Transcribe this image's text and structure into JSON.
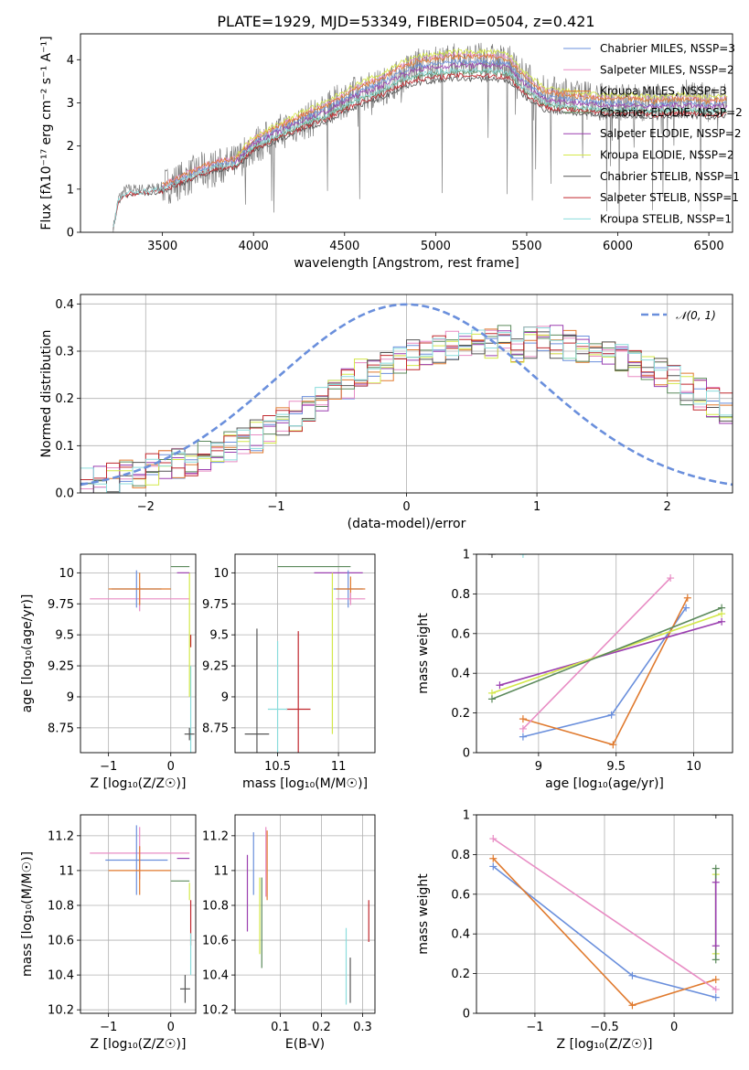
{
  "figure": {
    "title": "PLATE=1929, MJD=53349, FIBERID=0504, z=0.421"
  },
  "chart_data": [
    {
      "type": "line",
      "panel": "spectrum",
      "xlabel": "wavelength [Angstrom, rest frame]",
      "ylabel": "Flux [fλ10⁻¹⁷ erg cm⁻² s⁻¹ A⁻¹]",
      "xlim": [
        3050,
        6630
      ],
      "ylim": [
        0,
        4.6
      ],
      "xticks": [
        3500,
        4000,
        4500,
        5000,
        5500,
        6000,
        6500
      ],
      "yticks": [
        0,
        1,
        2,
        3,
        4
      ],
      "grid": false,
      "legend_position": "top-right",
      "observed": {
        "color": "#7f7f7f",
        "x": [
          3230,
          3260,
          3300,
          3400,
          3500,
          3600,
          3700,
          3800,
          3900,
          4000,
          4100,
          4200,
          4300,
          4400,
          4500,
          4600,
          4700,
          4800,
          4900,
          5000,
          5100,
          5200,
          5300,
          5400,
          5500,
          5600,
          5700,
          5800,
          5900,
          6000,
          6100,
          6200,
          6300,
          6400,
          6500,
          6600
        ],
        "y": [
          0.1,
          0.8,
          1.0,
          1.0,
          1.05,
          1.2,
          1.4,
          1.5,
          1.6,
          2.0,
          2.2,
          2.45,
          2.6,
          2.8,
          3.1,
          3.25,
          3.35,
          3.6,
          3.85,
          3.9,
          3.95,
          3.95,
          3.95,
          3.9,
          3.5,
          3.2,
          3.15,
          3.05,
          3.05,
          3.05,
          3.0,
          3.0,
          3.05,
          3.1,
          3.0,
          3.05
        ]
      },
      "model_x": [
        3230,
        3260,
        3300,
        3400,
        3500,
        3600,
        3700,
        3800,
        3900,
        4000,
        4100,
        4200,
        4300,
        4400,
        4500,
        4600,
        4700,
        4800,
        4900,
        5000,
        5100,
        5200,
        5300,
        5400,
        5500,
        5600,
        5700,
        5800,
        5900,
        6000,
        6100,
        6200,
        6300,
        6400,
        6500,
        6600
      ],
      "series": [
        {
          "name": "Chabrier MILES, NSSP=3",
          "color": "#6a8fdc",
          "x_range": [
            3500,
            6600
          ],
          "level": 1.0
        },
        {
          "name": "Salpeter MILES, NSSP=2",
          "color": "#e88cc4",
          "x_range": [
            3500,
            6600
          ],
          "level": 1.04
        },
        {
          "name": "Kroupa MILES, NSSP=3",
          "color": "#e07a2e",
          "x_range": [
            3500,
            6600
          ],
          "level": 1.03
        },
        {
          "name": "Chabrier ELODIE, NSSP=2",
          "color": "#5c8a5c",
          "x_range": [
            3900,
            6600
          ],
          "level": 0.94
        },
        {
          "name": "Salpeter ELODIE, NSSP=2",
          "color": "#9b3fb0",
          "x_range": [
            3900,
            6600
          ],
          "level": 0.98
        },
        {
          "name": "Kroupa ELODIE, NSSP=2",
          "color": "#d4e84a",
          "x_range": [
            3900,
            6600
          ],
          "level": 1.06
        },
        {
          "name": "Chabrier STELIB, NSSP=1",
          "color": "#555555",
          "x_range": [
            3230,
            6600
          ],
          "level": 0.9
        },
        {
          "name": "Salpeter STELIB, NSSP=1",
          "color": "#c0282e",
          "x_range": [
            3230,
            6600
          ],
          "level": 0.92
        },
        {
          "name": "Kroupa STELIB, NSSP=1",
          "color": "#8adcdc",
          "x_range": [
            3230,
            6600
          ],
          "level": 0.95
        }
      ],
      "model_shape": [
        0.1,
        0.8,
        0.95,
        1.0,
        1.05,
        1.25,
        1.45,
        1.6,
        1.65,
        2.1,
        2.3,
        2.5,
        2.7,
        2.85,
        3.1,
        3.3,
        3.45,
        3.7,
        3.85,
        3.9,
        3.95,
        3.95,
        3.95,
        3.9,
        3.45,
        3.15,
        3.1,
        3.05,
        3.0,
        3.0,
        3.0,
        2.95,
        3.0,
        3.0,
        2.95,
        3.0
      ]
    },
    {
      "type": "line",
      "panel": "residuals",
      "xlabel": "(data-model)/error",
      "ylabel": "Normed distribution",
      "xlim": [
        -2.5,
        2.5
      ],
      "ylim": [
        0,
        0.42
      ],
      "xticks": [
        -2,
        -1,
        0,
        1,
        2
      ],
      "yticks": [
        0.0,
        0.1,
        0.2,
        0.3,
        0.4
      ],
      "grid": true,
      "legend_position": "top-right",
      "gaussian": {
        "name": "𝒩(0, 1)",
        "color": "#6a8fdc",
        "mean": 0,
        "sigma": 1
      },
      "hist_bin_width": 0.1,
      "hist_base": [
        0.02,
        0.025,
        0.03,
        0.035,
        0.04,
        0.05,
        0.055,
        0.06,
        0.07,
        0.08,
        0.09,
        0.1,
        0.11,
        0.12,
        0.13,
        0.15,
        0.16,
        0.18,
        0.2,
        0.22,
        0.23,
        0.25,
        0.26,
        0.27,
        0.28,
        0.29,
        0.3,
        0.3,
        0.31,
        0.31,
        0.31,
        0.32,
        0.32,
        0.31,
        0.32,
        0.32,
        0.32,
        0.31,
        0.3,
        0.3,
        0.29,
        0.28,
        0.27,
        0.26,
        0.25,
        0.24,
        0.22,
        0.21,
        0.19,
        0.18
      ],
      "hist_colors": [
        "#6a8fdc",
        "#e88cc4",
        "#e07a2e",
        "#5c8a5c",
        "#9b3fb0",
        "#d4e84a",
        "#555555",
        "#c0282e",
        "#8adcdc"
      ]
    },
    {
      "type": "scatter",
      "panel": "age-vs-Z",
      "xlabel": "Z [log₁₀(Z/Z☉)]",
      "ylabel": "age  [log₁₀(age/yr)]",
      "xlim": [
        -1.45,
        0.4
      ],
      "ylim": [
        8.55,
        10.15
      ],
      "xticks": [
        -1,
        0
      ],
      "yticks": [
        8.75,
        9.0,
        9.25,
        9.5,
        9.75,
        10.0
      ],
      "grid": true,
      "errorbars": [
        {
          "color": "#e88cc4",
          "x": -0.5,
          "y": 9.79,
          "xerr": 0.8,
          "yerr": 0.1
        },
        {
          "color": "#6a8fdc",
          "x": -0.55,
          "y": 9.87,
          "xerr": 0.4,
          "yerr": 0.15
        },
        {
          "color": "#e07a2e",
          "x": -0.5,
          "y": 9.87,
          "xerr": 0.5,
          "yerr": 0.13
        },
        {
          "color": "#d4e84a",
          "x": 0.3,
          "y": 9.5,
          "xerr": 0.0,
          "yerr": 0.5
        },
        {
          "color": "#5c8a5c",
          "x": 0.15,
          "y": 10.05,
          "xerr": 0.15,
          "yerr": 0.0
        },
        {
          "color": "#9b3fb0",
          "x": 0.2,
          "y": 10.0,
          "xerr": 0.1,
          "yerr": 0.0
        },
        {
          "color": "#c0282e",
          "x": 0.32,
          "y": 9.45,
          "xerr": 0.0,
          "yerr": 0.05
        },
        {
          "color": "#8adcdc",
          "x": 0.32,
          "y": 8.9,
          "xerr": 0.0,
          "yerr": 0.35
        },
        {
          "color": "#555555",
          "x": 0.3,
          "y": 8.7,
          "xerr": 0.08,
          "yerr": 0.05
        }
      ]
    },
    {
      "type": "scatter",
      "panel": "age-vs-mass",
      "xlabel": "mass [log₁₀(M/M☉)]",
      "ylabel": "",
      "xlim": [
        10.15,
        11.3
      ],
      "ylim": [
        8.55,
        10.15
      ],
      "xticks": [
        10.5,
        11.0
      ],
      "yticks": [
        8.75,
        9.0,
        9.25,
        9.5,
        9.75,
        10.0
      ],
      "grid": true,
      "errorbars": [
        {
          "color": "#5c8a5c",
          "x": 10.8,
          "y": 10.05,
          "xerr": 0.3,
          "yerr": 0.0
        },
        {
          "color": "#9b3fb0",
          "x": 11.0,
          "y": 10.0,
          "xerr": 0.2,
          "yerr": 0.0
        },
        {
          "color": "#6a8fdc",
          "x": 11.08,
          "y": 9.87,
          "xerr": 0.12,
          "yerr": 0.15
        },
        {
          "color": "#e07a2e",
          "x": 11.1,
          "y": 9.87,
          "xerr": 0.12,
          "yerr": 0.1
        },
        {
          "color": "#e88cc4",
          "x": 11.1,
          "y": 9.79,
          "xerr": 0.12,
          "yerr": 0.05
        },
        {
          "color": "#d4e84a",
          "x": 10.95,
          "y": 9.35,
          "xerr": 0.0,
          "yerr": 0.65
        },
        {
          "color": "#c0282e",
          "x": 10.67,
          "y": 8.9,
          "xerr": 0.1,
          "yerr": 0.63
        },
        {
          "color": "#8adcdc",
          "x": 10.5,
          "y": 8.9,
          "xerr": 0.08,
          "yerr": 0.55
        },
        {
          "color": "#555555",
          "x": 10.33,
          "y": 8.7,
          "xerr": 0.1,
          "yerr": 0.85
        }
      ]
    },
    {
      "type": "line",
      "panel": "weight-vs-age",
      "xlabel": "age  [log₁₀(age/yr)]",
      "ylabel": "mass weight",
      "xlim": [
        8.6,
        10.25
      ],
      "ylim": [
        0,
        1.0
      ],
      "xticks": [
        9.0,
        9.5,
        10.0
      ],
      "yticks": [
        0.0,
        0.2,
        0.4,
        0.6,
        0.8,
        1.0
      ],
      "grid": true,
      "series": [
        {
          "color": "#6a8fdc",
          "x": [
            8.9,
            9.47,
            9.95
          ],
          "y": [
            0.08,
            0.19,
            0.73
          ]
        },
        {
          "color": "#e07a2e",
          "x": [
            8.9,
            9.48,
            9.96
          ],
          "y": [
            0.17,
            0.04,
            0.78
          ]
        },
        {
          "color": "#e88cc4",
          "x": [
            8.9,
            9.85
          ],
          "y": [
            0.12,
            0.88
          ]
        },
        {
          "color": "#9b3fb0",
          "x": [
            8.75,
            10.18
          ],
          "y": [
            0.34,
            0.66
          ]
        },
        {
          "color": "#d4e84a",
          "x": [
            8.7,
            10.18
          ],
          "y": [
            0.3,
            0.7
          ]
        },
        {
          "color": "#5c8a5c",
          "x": [
            8.7,
            10.18
          ],
          "y": [
            0.27,
            0.73
          ]
        },
        {
          "color": "#555555",
          "x": [
            8.7
          ],
          "y": [
            1.0
          ]
        },
        {
          "color": "#8adcdc",
          "x": [
            8.9
          ],
          "y": [
            1.0
          ]
        }
      ]
    },
    {
      "type": "scatter",
      "panel": "mass-vs-Z",
      "xlabel": "Z [log₁₀(Z/Z☉)]",
      "ylabel": "mass [log₁₀(M/M☉)]",
      "xlim": [
        -1.45,
        0.4
      ],
      "ylim": [
        10.18,
        11.32
      ],
      "xticks": [
        -1,
        0
      ],
      "yticks": [
        10.2,
        10.4,
        10.6,
        10.8,
        11.0,
        11.2
      ],
      "grid": true,
      "errorbars": [
        {
          "color": "#e88cc4",
          "x": -0.5,
          "y": 11.1,
          "xerr": 0.8,
          "yerr": 0.15
        },
        {
          "color": "#6a8fdc",
          "x": -0.55,
          "y": 11.06,
          "xerr": 0.5,
          "yerr": 0.2
        },
        {
          "color": "#e07a2e",
          "x": -0.5,
          "y": 11.0,
          "xerr": 0.5,
          "yerr": 0.14
        },
        {
          "color": "#9b3fb0",
          "x": 0.2,
          "y": 11.07,
          "xerr": 0.1,
          "yerr": 0.0
        },
        {
          "color": "#5c8a5c",
          "x": 0.15,
          "y": 10.94,
          "xerr": 0.15,
          "yerr": 0.0
        },
        {
          "color": "#d4e84a",
          "x": 0.3,
          "y": 10.88,
          "xerr": 0.0,
          "yerr": 0.05
        },
        {
          "color": "#c0282e",
          "x": 0.32,
          "y": 10.7,
          "xerr": 0.0,
          "yerr": 0.13
        },
        {
          "color": "#8adcdc",
          "x": 0.32,
          "y": 10.52,
          "xerr": 0.0,
          "yerr": 0.12
        },
        {
          "color": "#555555",
          "x": 0.23,
          "y": 10.32,
          "xerr": 0.08,
          "yerr": 0.08
        }
      ]
    },
    {
      "type": "scatter",
      "panel": "mass-vs-EBV",
      "xlabel": "E(B-V)",
      "ylabel": "",
      "xlim": [
        -0.01,
        0.33
      ],
      "ylim": [
        10.18,
        11.32
      ],
      "xticks": [
        0.1,
        0.2,
        0.3
      ],
      "yticks": [
        10.2,
        10.4,
        10.6,
        10.8,
        11.0,
        11.2
      ],
      "grid": true,
      "errorbars": [
        {
          "color": "#9b3fb0",
          "x": 0.02,
          "y": 10.87,
          "xerr": 0.0,
          "yerr": 0.22
        },
        {
          "color": "#6a8fdc",
          "x": 0.035,
          "y": 11.04,
          "xerr": 0.0,
          "yerr": 0.18
        },
        {
          "color": "#d4e84a",
          "x": 0.05,
          "y": 10.74,
          "xerr": 0.0,
          "yerr": 0.22
        },
        {
          "color": "#5c8a5c",
          "x": 0.055,
          "y": 10.7,
          "xerr": 0.0,
          "yerr": 0.26
        },
        {
          "color": "#e88cc4",
          "x": 0.065,
          "y": 11.05,
          "xerr": 0.0,
          "yerr": 0.2
        },
        {
          "color": "#e07a2e",
          "x": 0.068,
          "y": 11.03,
          "xerr": 0.0,
          "yerr": 0.2
        },
        {
          "color": "#8adcdc",
          "x": 0.26,
          "y": 10.45,
          "xerr": 0.0,
          "yerr": 0.22
        },
        {
          "color": "#555555",
          "x": 0.27,
          "y": 10.37,
          "xerr": 0.0,
          "yerr": 0.13
        },
        {
          "color": "#c0282e",
          "x": 0.315,
          "y": 10.71,
          "xerr": 0.0,
          "yerr": 0.12
        }
      ]
    },
    {
      "type": "line",
      "panel": "weight-vs-Z",
      "xlabel": "Z [log₁₀(Z/Z☉)]",
      "ylabel": "mass weight",
      "xlim": [
        -1.42,
        0.42
      ],
      "ylim": [
        0,
        1.0
      ],
      "xticks": [
        -1.0,
        -0.5,
        0.0
      ],
      "yticks": [
        0.0,
        0.2,
        0.4,
        0.6,
        0.8,
        1.0
      ],
      "grid": true,
      "series": [
        {
          "color": "#6a8fdc",
          "x": [
            -1.3,
            -0.3,
            0.3
          ],
          "y": [
            0.74,
            0.19,
            0.08
          ]
        },
        {
          "color": "#e07a2e",
          "x": [
            -1.3,
            -0.3,
            0.3
          ],
          "y": [
            0.78,
            0.04,
            0.17
          ]
        },
        {
          "color": "#e88cc4",
          "x": [
            -1.3,
            0.3
          ],
          "y": [
            0.88,
            0.12
          ]
        },
        {
          "color": "#d4e84a",
          "x": [
            0.3,
            0.3
          ],
          "y": [
            0.3,
            0.7
          ]
        },
        {
          "color": "#5c8a5c",
          "x": [
            0.3,
            0.3
          ],
          "y": [
            0.27,
            0.73
          ]
        },
        {
          "color": "#9b3fb0",
          "x": [
            0.3,
            0.3
          ],
          "y": [
            0.34,
            0.66
          ]
        },
        {
          "color": "#555555",
          "x": [
            0.3
          ],
          "y": [
            1.0
          ]
        }
      ]
    }
  ]
}
